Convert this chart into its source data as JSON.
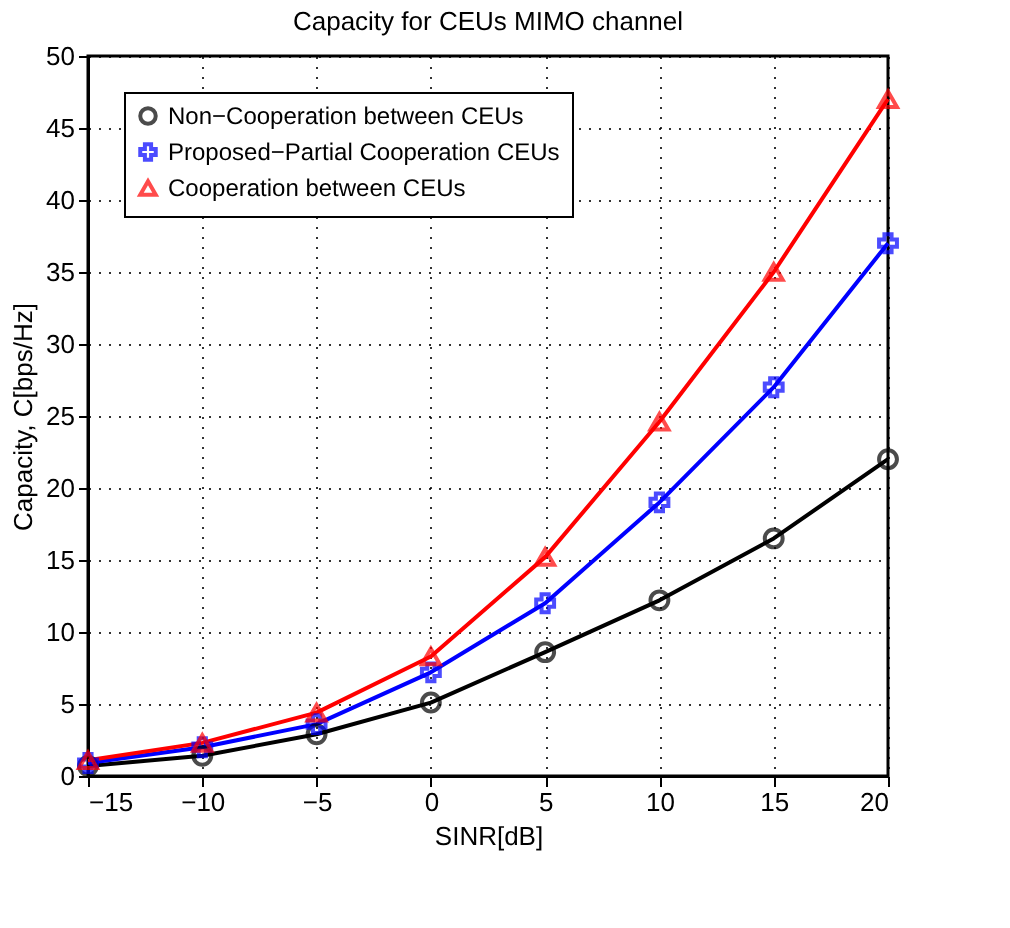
{
  "chart_data": {
    "type": "line",
    "title": "Capacity  for CEUs  MIMO channel",
    "xlabel": "SINR[dB]",
    "ylabel": "Capacity, C[bps/Hz]",
    "x": [
      -15,
      -10,
      -5,
      0,
      5,
      10,
      15,
      20
    ],
    "series": [
      {
        "name": "Non−Cooperation between CEUs",
        "color": "#000000",
        "marker": "circle",
        "values": [
          0.7,
          1.4,
          2.9,
          5.1,
          8.6,
          12.2,
          16.5,
          22
        ]
      },
      {
        "name": "Proposed−Partial Cooperation CEUs",
        "color": "#0000ff",
        "marker": "cross",
        "values": [
          0.9,
          2.0,
          3.6,
          7.2,
          12,
          19,
          27,
          37
        ]
      },
      {
        "name": "Cooperation between CEUs",
        "color": "#ff0000",
        "marker": "triangle",
        "values": [
          1.1,
          2.3,
          4.4,
          8.3,
          15.2,
          24.6,
          35,
          47
        ]
      }
    ],
    "xlim": [
      -15,
      20
    ],
    "xticks": [
      -15,
      -10,
      -5,
      0,
      5,
      10,
      15,
      20
    ],
    "ylim": [
      0,
      50
    ],
    "yticks": [
      0,
      5,
      10,
      15,
      20,
      25,
      30,
      35,
      40,
      45,
      50
    ],
    "grid": true,
    "legend": "top left",
    "line_style": "solid"
  }
}
